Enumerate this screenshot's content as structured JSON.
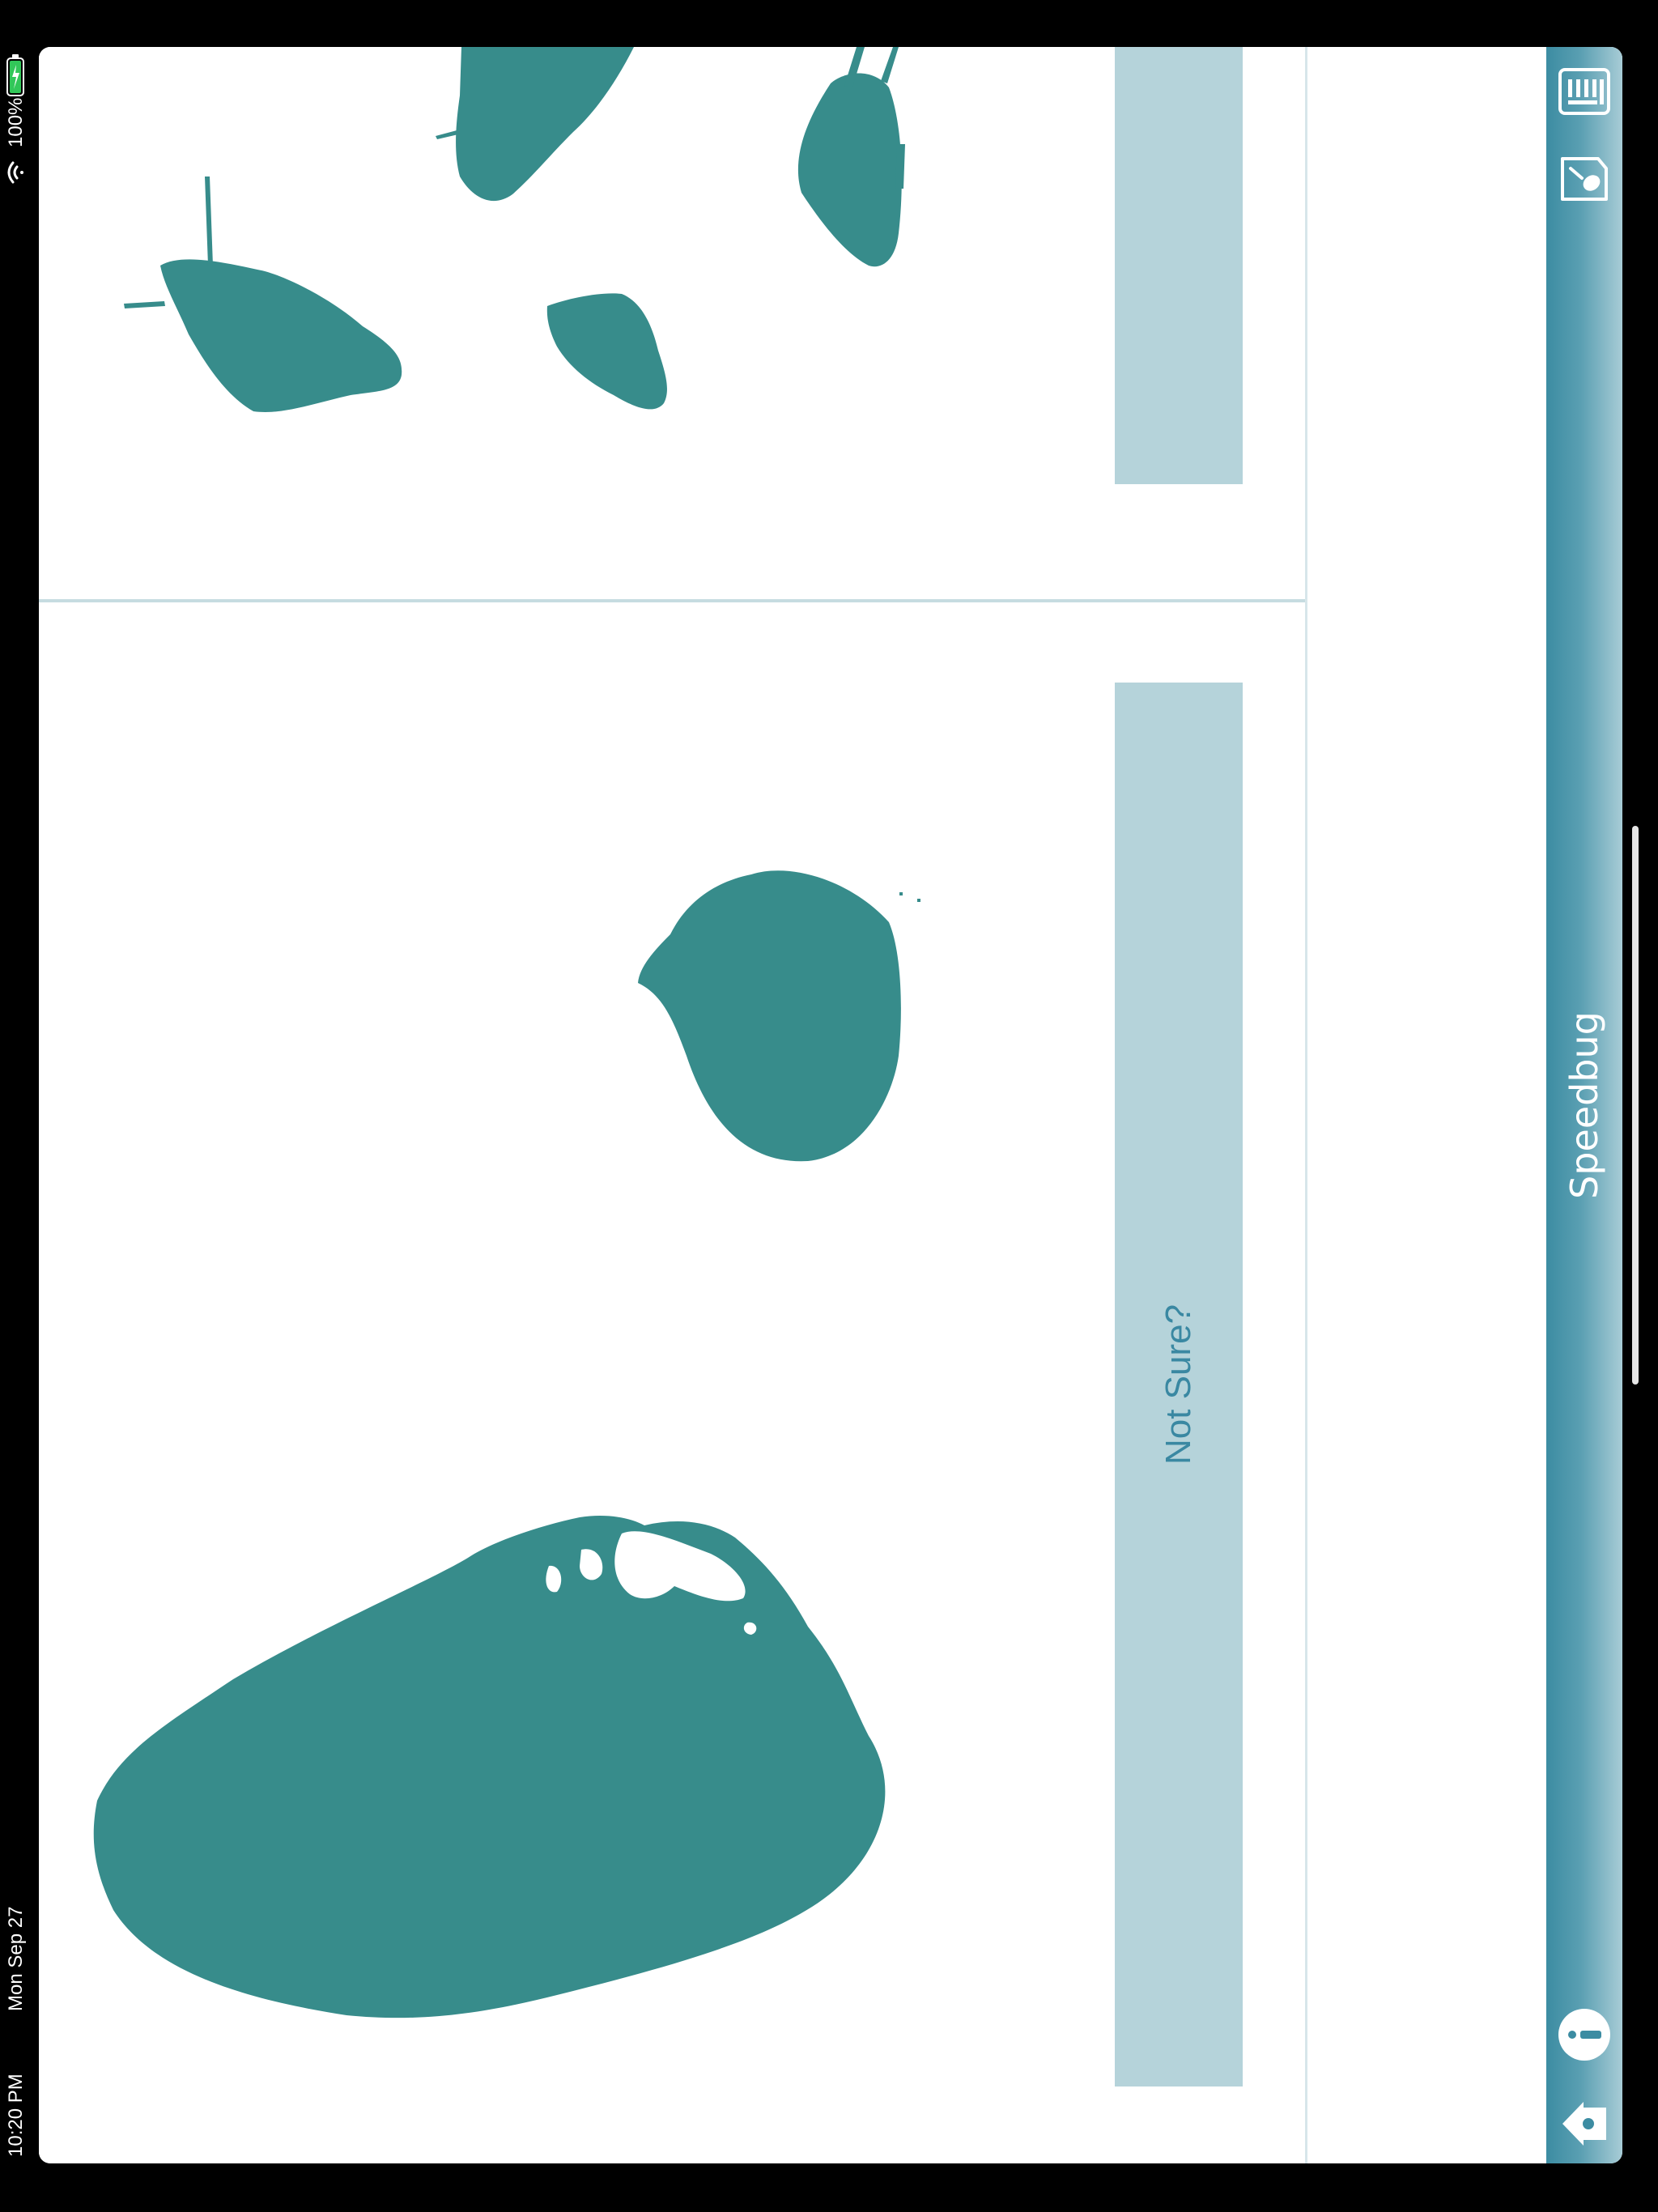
{
  "status_bar": {
    "time": "10:20 PM",
    "date": "Mon Sep 27",
    "battery": "100%"
  },
  "app": {
    "title": "Speedbug"
  },
  "panels": {
    "top_option_button": "",
    "not_sure_button": "Not Sure?"
  },
  "nav": {
    "icons": [
      "home-icon",
      "info-icon",
      "specimen-tag-icon",
      "keyboard-icon"
    ]
  },
  "colors": {
    "specimen": "#378c8b",
    "bar_gradient_start": "#3c8ca2",
    "answer_bar": "#b5d3da",
    "answer_text": "#3a88a2"
  }
}
